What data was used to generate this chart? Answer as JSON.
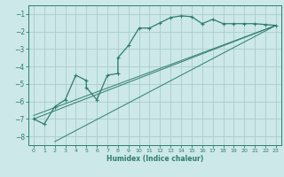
{
  "bg_color": "#cce8e8",
  "grid_color": "#aacccc",
  "line_color": "#2e7d6e",
  "xlabel": "Humidex (Indice chaleur)",
  "ylim": [
    -8.5,
    -0.5
  ],
  "xlim": [
    -0.5,
    23.5
  ],
  "yticks": [
    -8,
    -7,
    -6,
    -5,
    -4,
    -3,
    -2,
    -1
  ],
  "xticks": [
    0,
    1,
    2,
    3,
    4,
    5,
    6,
    7,
    8,
    9,
    10,
    11,
    12,
    13,
    14,
    15,
    16,
    17,
    18,
    19,
    20,
    21,
    22,
    23
  ],
  "main_x": [
    0,
    1,
    2,
    3,
    4,
    5,
    5,
    6,
    7,
    8,
    8,
    9,
    10,
    11,
    12,
    13,
    14,
    15,
    16,
    17,
    18,
    19,
    20,
    21,
    22,
    23
  ],
  "main_y": [
    -7.0,
    -7.3,
    -6.3,
    -5.9,
    -4.5,
    -4.8,
    -5.2,
    -5.9,
    -4.5,
    -4.4,
    -3.5,
    -2.8,
    -1.8,
    -1.8,
    -1.5,
    -1.2,
    -1.1,
    -1.15,
    -1.55,
    -1.3,
    -1.55,
    -1.55,
    -1.55,
    -1.55,
    -1.6,
    -1.65
  ],
  "line1_x": [
    0,
    23
  ],
  "line1_y": [
    -7.0,
    -1.65
  ],
  "line2_x": [
    0,
    23
  ],
  "line2_y": [
    -6.8,
    -1.65
  ],
  "line3_x": [
    2,
    23
  ],
  "line3_y": [
    -8.3,
    -1.65
  ]
}
